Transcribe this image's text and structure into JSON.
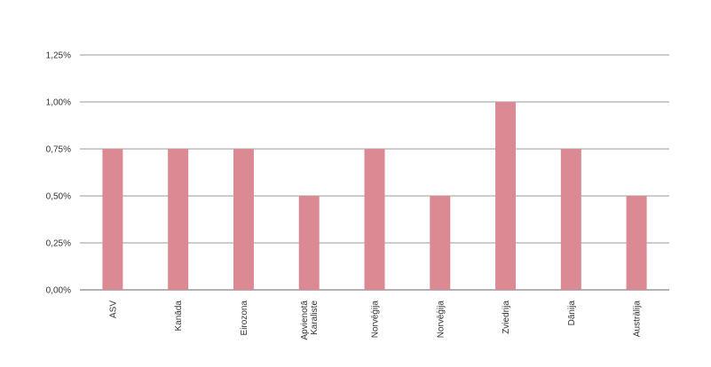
{
  "chart_data": {
    "type": "bar",
    "categories": [
      "ASV",
      "Kanāda",
      "Eirozona",
      "Apvienotā Karaliste",
      "Norvēģija",
      "Norvēģija",
      "Zviedrija",
      "Dānija",
      "Austrālija"
    ],
    "category_lines": [
      [
        "ASV"
      ],
      [
        "Kanāda"
      ],
      [
        "Eirozona"
      ],
      [
        "Apvienotā",
        "Karaliste"
      ],
      [
        "Norvēģija"
      ],
      [
        "Norvēģija"
      ],
      [
        "Zviedrija"
      ],
      [
        "Dānija"
      ],
      [
        "Austrālija"
      ]
    ],
    "values": [
      0.75,
      0.75,
      0.75,
      0.5,
      0.75,
      0.5,
      1.0,
      0.75,
      0.5
    ],
    "yticks": [
      "0,00%",
      "0,25%",
      "0,50%",
      "0,75%",
      "1,00%",
      "1,25%"
    ],
    "ylim": [
      0,
      1.25
    ],
    "grid": true,
    "colors": {
      "bar": "#db8a94",
      "grid": "#999999",
      "axis": "#666666"
    }
  }
}
